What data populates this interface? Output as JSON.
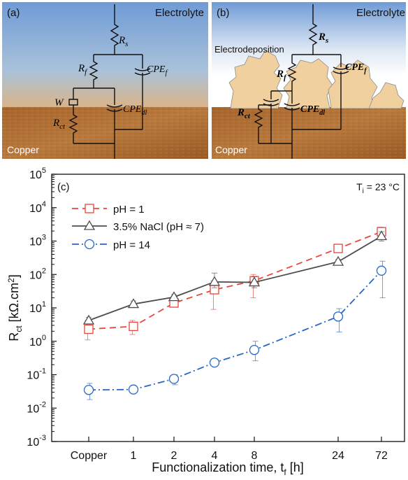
{
  "panel_a": {
    "label": "(a)",
    "electrolyte": "Electrolyte",
    "metal": "Copper",
    "components": {
      "rs": "R_s",
      "rf": "R_f",
      "cpef": "CPE_f",
      "w": "W",
      "rct": "R_ct",
      "cpedl": "CPE_dl"
    }
  },
  "panel_b": {
    "label": "(b)",
    "electrolyte": "Electrolyte",
    "deposit": "Electrodeposition",
    "metal": "Copper",
    "components": {
      "rs": "R_s",
      "rf": "R_f",
      "cpef": "CPE_f",
      "rct": "R_ct",
      "cpedl": "CPE_dl"
    }
  },
  "colors": {
    "electrolyte_top": "#6e9ad4",
    "copper": "#a86a32",
    "deposit": "#f0cf9c",
    "ph1": "#e8453c",
    "nacl": "#4d4d4d",
    "ph14": "#2566c8"
  },
  "chart_data": {
    "type": "line",
    "panel_label": "(c)",
    "annotation": "T_i = 23 °C",
    "ylabel": "R_ct [kΩ.cm²]",
    "xlabel": "Functionalization time, t_f [h]",
    "yscale": "log",
    "ylim": [
      0.001,
      100000
    ],
    "yticks": [
      "10^-3",
      "10^-2",
      "10^-1",
      "10^0",
      "10^1",
      "10^2",
      "10^3",
      "10^4",
      "10^5"
    ],
    "categories": [
      "Copper",
      "1",
      "2",
      "4",
      "8",
      "24",
      "72"
    ],
    "legend_position": "top-left",
    "series": [
      {
        "name": "pH = 1",
        "marker": "square",
        "line": "dashed",
        "color": "#e8453c",
        "values": [
          2.3,
          2.8,
          14,
          35,
          65,
          600,
          1900
        ],
        "err_low": [
          1.1,
          1.6,
          11,
          9,
          20,
          450,
          1300
        ],
        "err_high": [
          4.2,
          4.2,
          17,
          65,
          100,
          800,
          2600
        ]
      },
      {
        "name": "3.5% NaCl (pH ≈ 7)",
        "marker": "triangle",
        "line": "solid",
        "color": "#4d4d4d",
        "values": [
          4.2,
          13,
          21,
          60,
          58,
          240,
          1400
        ],
        "err_low": [
          3.4,
          11,
          18,
          40,
          40,
          200,
          1000
        ],
        "err_high": [
          5.2,
          16,
          25,
          110,
          85,
          280,
          1900
        ]
      },
      {
        "name": "pH = 14",
        "marker": "circle",
        "line": "dashdot",
        "color": "#2566c8",
        "values": [
          0.035,
          0.036,
          0.075,
          0.23,
          0.55,
          5.5,
          130
        ],
        "err_low": [
          0.018,
          0.032,
          0.05,
          0.2,
          0.26,
          1.9,
          20
        ],
        "err_high": [
          0.055,
          0.04,
          0.1,
          0.26,
          1.0,
          9.5,
          250
        ]
      }
    ]
  }
}
